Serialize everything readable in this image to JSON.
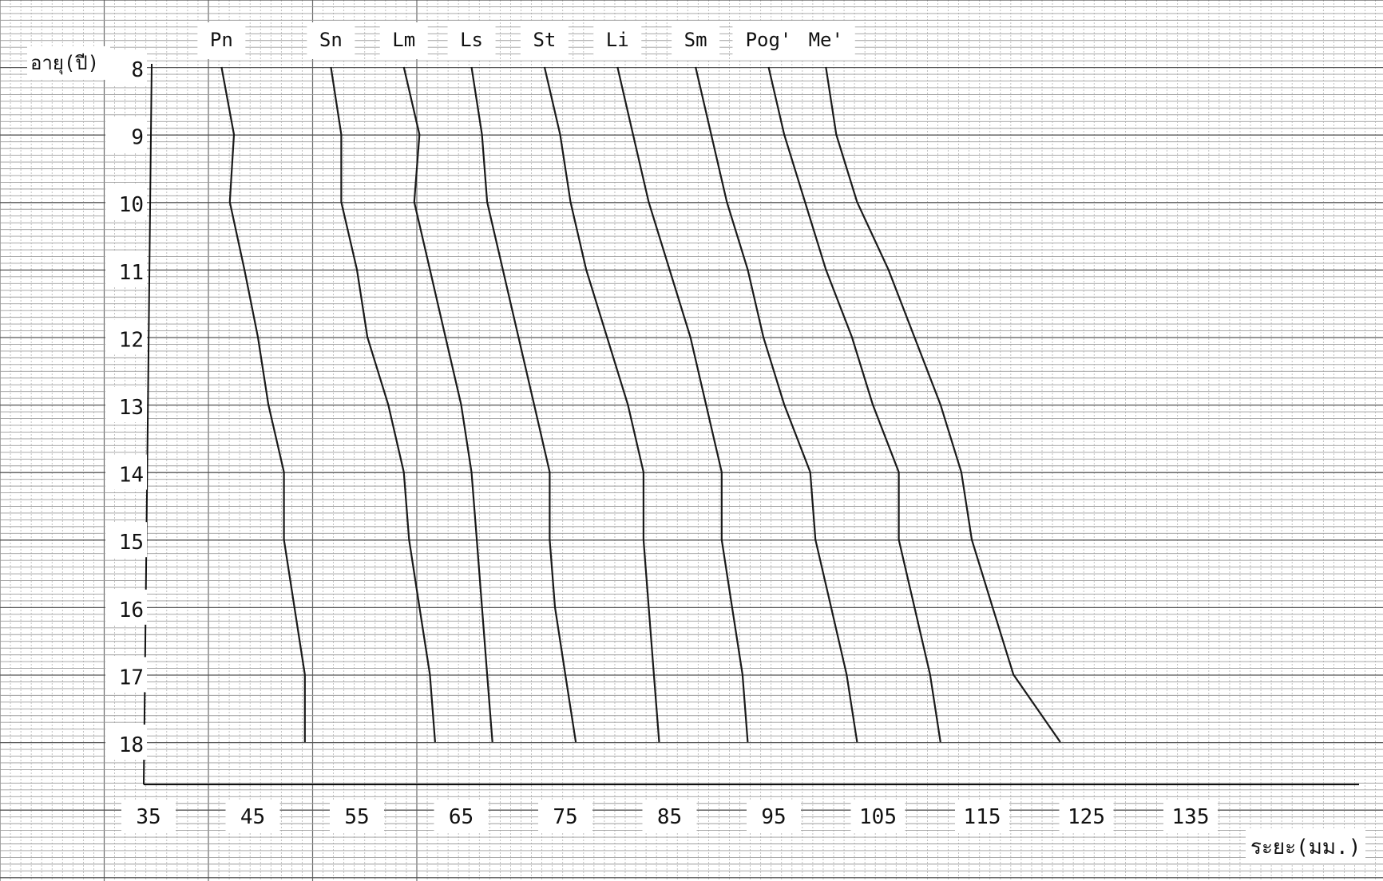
{
  "chart_data": {
    "type": "line",
    "title": "",
    "ylabel": "อายุ(ปี)",
    "xlabel": "ระยะ(มม.)",
    "xlim": [
      35,
      135
    ],
    "ylim": [
      8,
      18
    ],
    "y_inverted": true,
    "grid": true,
    "y": [
      8,
      9,
      10,
      11,
      12,
      13,
      14,
      15,
      16,
      17,
      18
    ],
    "x_ticks": [
      "35",
      "45",
      "55",
      "65",
      "75",
      "85",
      "95",
      "105",
      "115",
      "125",
      "135"
    ],
    "y_ticks": [
      "8",
      "9",
      "10",
      "11",
      "12",
      "13",
      "14",
      "15",
      "16",
      "17",
      "18"
    ],
    "series": [
      {
        "name": "Pn",
        "x": [
          42,
          43.2,
          42.8,
          44.2,
          45.5,
          46.5,
          48,
          48,
          49,
          50,
          50
        ]
      },
      {
        "name": "Sn",
        "x": [
          52.5,
          53.5,
          53.5,
          55,
          56,
          58,
          59.5,
          60,
          61,
          62,
          62.5
        ]
      },
      {
        "name": "Lm",
        "x": [
          59.5,
          61,
          60.5,
          62,
          63.5,
          65,
          66,
          66.5,
          67,
          67.5,
          68
        ]
      },
      {
        "name": "Ls",
        "x": [
          66,
          67,
          67.5,
          69,
          70.5,
          72,
          73.5,
          73.5,
          74,
          75,
          76
        ]
      },
      {
        "name": "St",
        "x": [
          73,
          74.5,
          75.5,
          77,
          79,
          81,
          82.5,
          82.5,
          83,
          83.5,
          84
        ]
      },
      {
        "name": "Li",
        "x": [
          80,
          81.5,
          83,
          85,
          87,
          88.5,
          90,
          90,
          91,
          92,
          92.5
        ]
      },
      {
        "name": "Sm",
        "x": [
          87.5,
          89,
          90.5,
          92.5,
          94,
          96,
          98.5,
          99,
          100.5,
          102,
          103
        ]
      },
      {
        "name": "Pog'",
        "x": [
          94.5,
          96,
          98,
          100,
          102.5,
          104.5,
          107,
          107,
          108.5,
          110,
          111
        ]
      },
      {
        "name": "Me'",
        "x": [
          100,
          101,
          103,
          106,
          108.5,
          111,
          113,
          114,
          116,
          118,
          122.5
        ]
      }
    ]
  }
}
